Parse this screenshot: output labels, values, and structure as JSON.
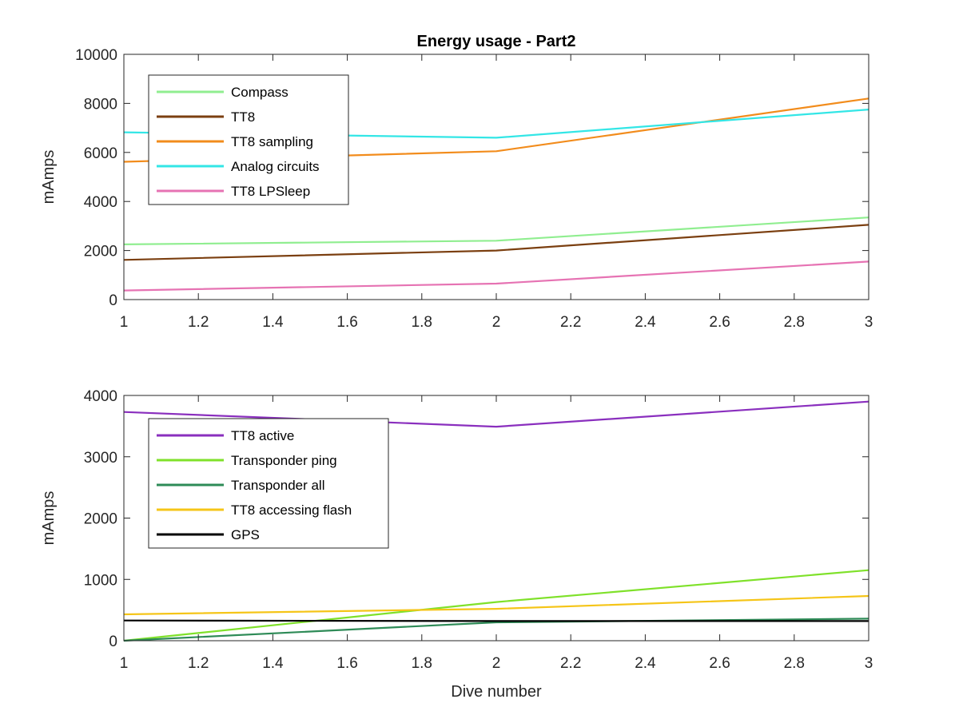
{
  "chart_data": [
    {
      "type": "line",
      "title": "Energy usage - Part2",
      "xlabel": "",
      "ylabel": "mAmps",
      "xlim": [
        1,
        3
      ],
      "ylim": [
        0,
        10000
      ],
      "xticks": [
        1,
        1.2,
        1.4,
        1.6,
        1.8,
        2,
        2.2,
        2.4,
        2.6,
        2.8,
        3
      ],
      "yticks": [
        0,
        2000,
        4000,
        6000,
        8000,
        10000
      ],
      "grid": false,
      "legend_position": "top-left",
      "x": [
        1,
        2,
        3
      ],
      "series": [
        {
          "name": "Compass",
          "color": "#90ee90",
          "values": [
            2250,
            2400,
            3350
          ]
        },
        {
          "name": "TT8",
          "color": "#7b3f10",
          "values": [
            1620,
            2000,
            3050
          ]
        },
        {
          "name": "TT8 sampling",
          "color": "#f28c1c",
          "values": [
            5620,
            6050,
            8200
          ]
        },
        {
          "name": "Analog circuits",
          "color": "#33e6e6",
          "values": [
            6820,
            6600,
            7750
          ]
        },
        {
          "name": "TT8 LPSleep",
          "color": "#e673b3",
          "values": [
            370,
            650,
            1550
          ]
        }
      ]
    },
    {
      "type": "line",
      "title": "",
      "xlabel": "Dive number",
      "ylabel": "mAmps",
      "xlim": [
        1,
        3
      ],
      "ylim": [
        0,
        4000
      ],
      "xticks": [
        1,
        1.2,
        1.4,
        1.6,
        1.8,
        2,
        2.2,
        2.4,
        2.6,
        2.8,
        3
      ],
      "yticks": [
        0,
        1000,
        2000,
        3000,
        4000
      ],
      "grid": false,
      "legend_position": "top-left",
      "x": [
        1,
        2,
        3
      ],
      "series": [
        {
          "name": "TT8 active",
          "color": "#8a2fbe",
          "values": [
            3730,
            3490,
            3900
          ]
        },
        {
          "name": "Transponder ping",
          "color": "#7fe12a",
          "values": [
            0,
            630,
            1150
          ]
        },
        {
          "name": "Transponder all",
          "color": "#2e8b57",
          "values": [
            0,
            300,
            360
          ]
        },
        {
          "name": "TT8 accessing flash",
          "color": "#f5c518",
          "values": [
            430,
            520,
            730
          ]
        },
        {
          "name": "GPS",
          "color": "#000000",
          "values": [
            330,
            320,
            320
          ]
        }
      ]
    }
  ]
}
